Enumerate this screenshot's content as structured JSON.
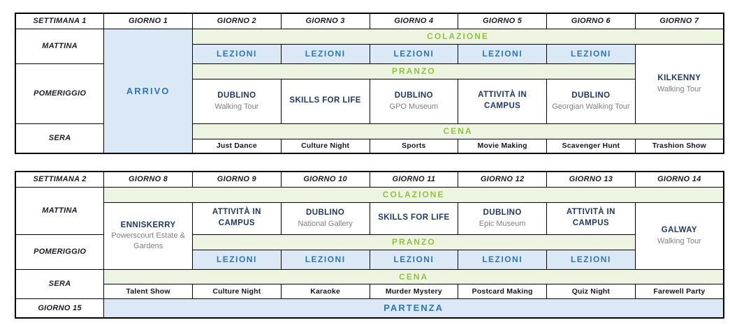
{
  "colors": {
    "accent_green": "#92c13d",
    "accent_blue": "#2e75b6",
    "title_navy": "#1f3864",
    "subtitle_gray": "#7f7f7f",
    "light_green_bg": "#eef4e2",
    "light_blue_bg": "#dbe9f6",
    "border": "#000000"
  },
  "week1": {
    "header": [
      "SETTIMANA 1",
      "GIORNO 1",
      "GIORNO 2",
      "GIORNO 3",
      "GIORNO 4",
      "GIORNO 5",
      "GIORNO 6",
      "GIORNO 7"
    ],
    "row_labels": {
      "morning": "MATTINA",
      "afternoon": "POMERIGGIO",
      "evening": "SERA"
    },
    "arrival": "ARRIVO",
    "breakfast": "COLAZIONE",
    "lessons": [
      "LEZIONI",
      "LEZIONI",
      "LEZIONI",
      "LEZIONI",
      "LEZIONI"
    ],
    "lunch": "PRANZO",
    "afternoon_activities": [
      {
        "title": "DUBLINO",
        "subtitle": "Walking Tour"
      },
      {
        "title": "SKILLS FOR LIFE",
        "subtitle": ""
      },
      {
        "title": "DUBLINO",
        "subtitle": "GPO Museum"
      },
      {
        "title": "ATTIVITÀ IN CAMPUS",
        "subtitle": ""
      },
      {
        "title": "DUBLINO",
        "subtitle": "Georgian Walking Tour"
      }
    ],
    "day7_trip": {
      "title": "KILKENNY",
      "subtitle": "Walking Tour"
    },
    "dinner": "CENA",
    "evening_activities": [
      "Just Dance",
      "Culture Night",
      "Sports",
      "Movie Making",
      "Scavenger Hunt",
      "Trashion Show"
    ]
  },
  "week2": {
    "header": [
      "SETTIMANA 2",
      "GIORNO 8",
      "GIORNO 9",
      "GIORNO 10",
      "GIORNO 11",
      "GIORNO 12",
      "GIORNO 13",
      "GIORNO 14"
    ],
    "row_labels": {
      "morning": "MATTINA",
      "afternoon": "POMERIGGIO",
      "evening": "SERA",
      "day15": "GIORNO 15"
    },
    "breakfast": "COLAZIONE",
    "day8_trip": {
      "title": "ENNISKERRY",
      "subtitle": "Powerscourt Estate & Gardens"
    },
    "morning_activities": [
      {
        "title": "ATTIVITÀ IN CAMPUS",
        "subtitle": ""
      },
      {
        "title": "DUBLINO",
        "subtitle": "National Gallery"
      },
      {
        "title": "SKILLS FOR LIFE",
        "subtitle": ""
      },
      {
        "title": "DUBLINO",
        "subtitle": "Epic Museum"
      },
      {
        "title": "ATTIVITÀ IN CAMPUS",
        "subtitle": ""
      }
    ],
    "day14_trip": {
      "title": "GALWAY",
      "subtitle": "Walking Tour"
    },
    "lunch": "PRANZO",
    "lessons": [
      "LEZIONI",
      "LEZIONI",
      "LEZIONI",
      "LEZIONI",
      "LEZIONI"
    ],
    "dinner": "CENA",
    "evening_activities": [
      "Talent Show",
      "Culture Night",
      "Karaoke",
      "Murder Mystery",
      "Postcard Making",
      "Quiz Night",
      "Farewell Party"
    ],
    "departure": "PARTENZA"
  }
}
